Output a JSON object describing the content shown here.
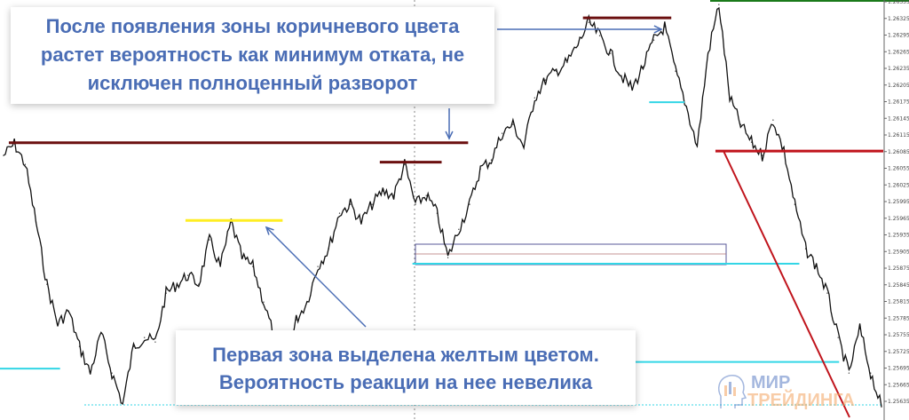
{
  "chart_data": {
    "type": "line",
    "title": "",
    "xlabel": "",
    "ylabel": "",
    "ylim": [
      1.25635,
      1.26355
    ],
    "y_ticks": [
      "1.26355",
      "1.26325",
      "1.26295",
      "1.26265",
      "1.26235",
      "1.26205",
      "1.26175",
      "1.26145",
      "1.26115",
      "1.26085",
      "1.26055",
      "1.26025",
      "1.25995",
      "1.25965",
      "1.25935",
      "1.25905",
      "1.25875",
      "1.25845",
      "1.25815",
      "1.25785",
      "1.25755",
      "1.25725",
      "1.25695",
      "1.25665",
      "1.25635"
    ],
    "grid": false,
    "series": [
      {
        "values": [
          1.26078,
          1.26099,
          1.26062,
          1.25958,
          1.25846,
          1.25774,
          1.25798,
          1.25734,
          1.25686,
          1.25758,
          1.25686,
          1.2563,
          1.25734,
          1.2575,
          1.25742,
          1.2583,
          1.25846,
          1.25862,
          1.25846,
          1.25926,
          1.25878,
          1.25958,
          1.25894,
          1.25878,
          1.25814,
          1.2575,
          1.25686,
          1.25782,
          1.25814,
          1.25878,
          1.2591,
          1.25974,
          1.2599,
          1.25958,
          1.2599,
          1.26014,
          1.26006,
          1.26062,
          1.2599,
          1.26006,
          1.25974,
          1.25894,
          1.25945,
          1.2599,
          1.26054,
          1.2607,
          1.26118,
          1.26134,
          1.26094,
          1.26182,
          1.26214,
          1.2623,
          1.26246,
          1.26278,
          1.26318,
          1.26294,
          1.26262,
          1.26222,
          1.26198,
          1.26238,
          1.26286,
          1.2631,
          1.2623,
          1.26166,
          1.26094,
          1.26262,
          1.2635,
          1.26182,
          1.26134,
          1.26102,
          1.26078,
          1.26142,
          1.26086,
          1.2599,
          1.2591,
          1.25878,
          1.2583,
          1.2575,
          1.25686,
          1.25766,
          1.25686,
          1.25625
        ]
      }
    ],
    "levels": [
      {
        "price": 1.26101,
        "color": "#6b0f0f",
        "from": 0.01,
        "to": 0.53
      },
      {
        "price": 1.26066,
        "color": "#6b0f0f",
        "from": 0.43,
        "to": 0.5
      },
      {
        "price": 1.25961,
        "color": "#ffee22",
        "from": 0.21,
        "to": 0.32
      },
      {
        "price": 1.26326,
        "color": "#6b0f0f",
        "from": 0.66,
        "to": 0.76
      },
      {
        "price": 1.26086,
        "color": "#c0141c",
        "from": 0.81,
        "to": 1.0
      },
      {
        "price": 1.26174,
        "color": "#33d6e6",
        "from": 0.735,
        "to": 0.775
      },
      {
        "price": 1.25883,
        "color": "#33d6e6",
        "from": 0.467,
        "to": 0.905
      },
      {
        "price": 1.25694,
        "color": "#33d6e6",
        "from": 0.0,
        "to": 0.068
      },
      {
        "price": 1.25706,
        "color": "#33d6e6",
        "from": 0.718,
        "to": 0.95
      }
    ]
  },
  "annotations": {
    "note1_lines": [
      "После появления зоны коричневого цвета",
      "растет вероятность как минимум отката, не",
      "исключен полноценный разворот"
    ],
    "note2_lines": [
      "Первая зона выделена желтым цветом.",
      "Вероятность реакции на нее невелика"
    ],
    "text_color": "#4a6db5"
  },
  "logo": {
    "line1": "МИР",
    "line2": "ТРЕЙДИНГА"
  }
}
